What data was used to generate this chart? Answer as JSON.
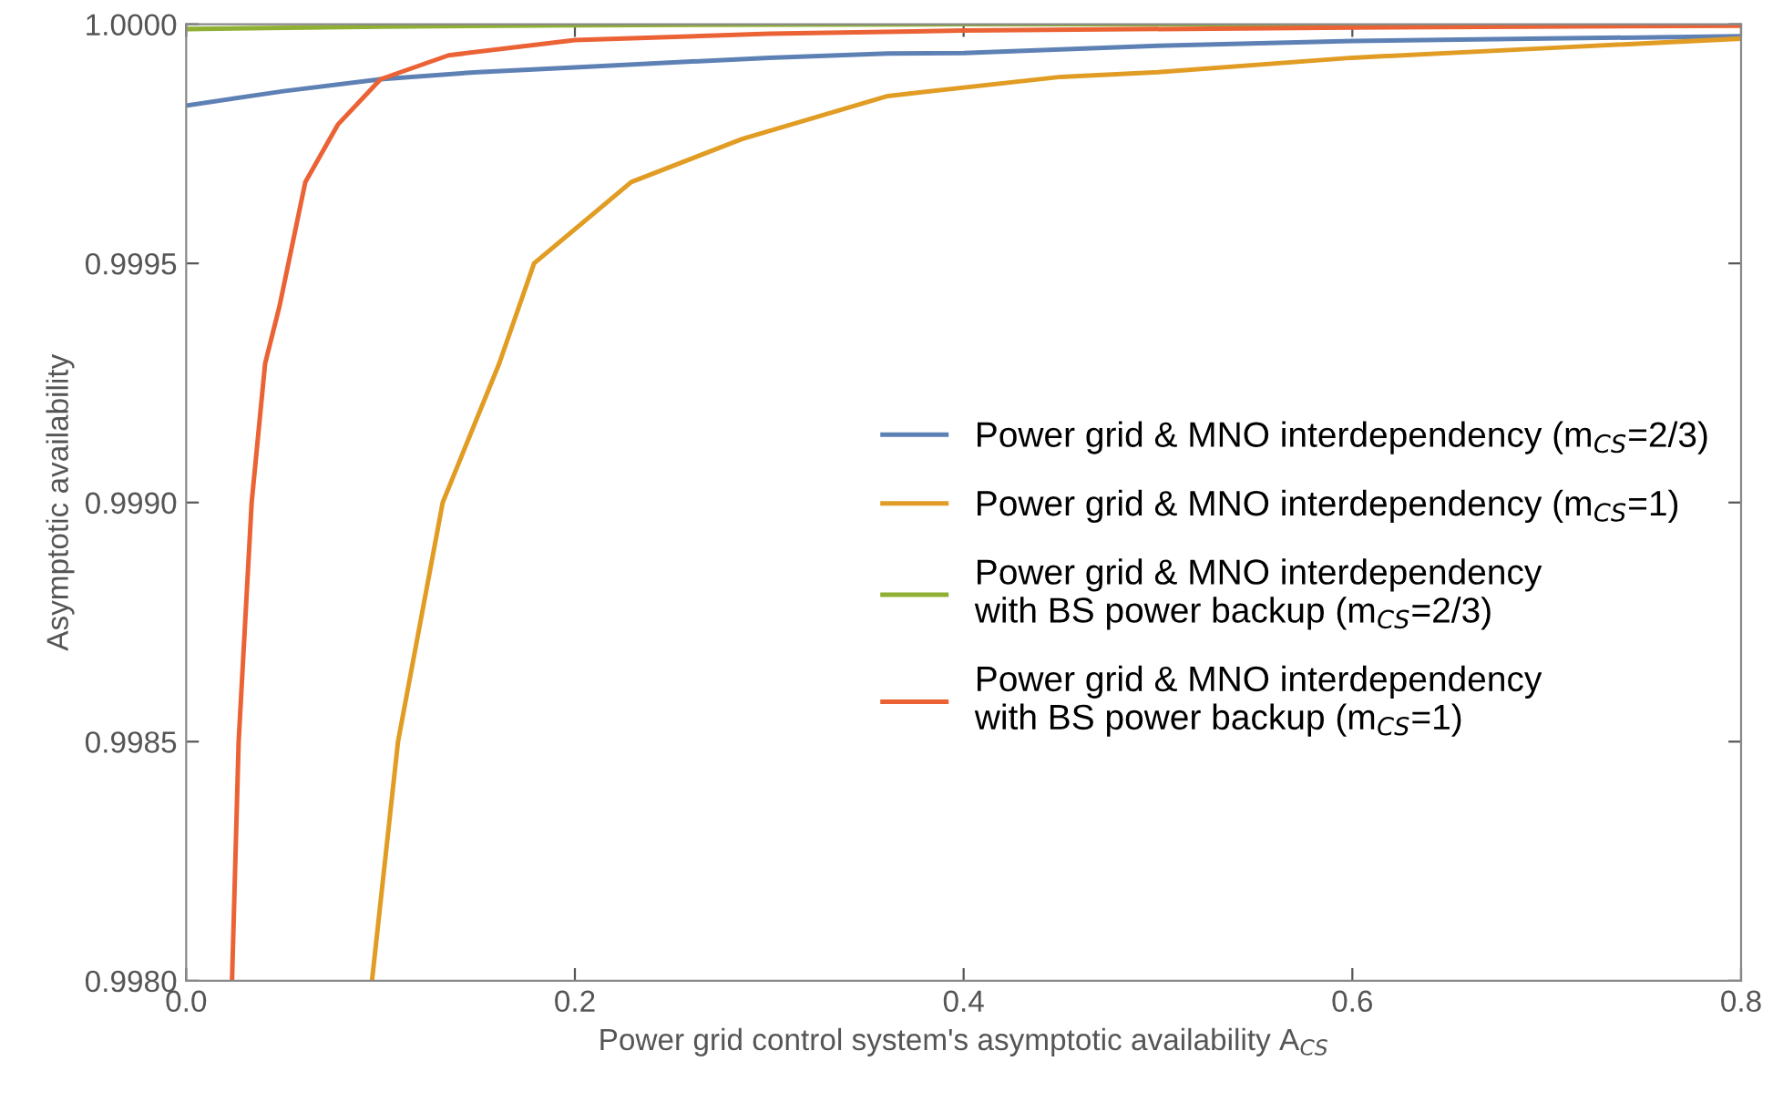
{
  "chart_data": {
    "type": "line",
    "xlabel": "Power grid control system's asymptotic availability A$_{CS}$",
    "ylabel": "Asymptotic availability",
    "xlim": [
      0,
      0.8
    ],
    "ylim": [
      0.998,
      1.0
    ],
    "xticks": [
      {
        "value": 0,
        "label": "0.0"
      },
      0.2,
      0.4,
      0.6,
      0.8
    ],
    "yticks": [
      {
        "value": 0.998,
        "label": "0.9980"
      },
      0.9985,
      {
        "value": 0.999,
        "label": "0.9990"
      },
      0.9995,
      {
        "value": 1.0,
        "label": "1.0000"
      }
    ],
    "grid": false,
    "legend": "right",
    "marker": "none",
    "line_style": "solid",
    "series": [
      {
        "name": "Power grid & MNO interdependency (m$_{CS}$=2/3)",
        "color": "#5e81b5",
        "x": [
          0,
          0.05,
          0.1,
          0.15,
          0.2,
          0.3,
          0.361,
          0.4,
          0.5,
          0.6,
          0.7,
          0.8
        ],
        "values": [
          0.99983,
          0.99986,
          0.999885,
          0.9999,
          0.99991,
          0.99993,
          0.999939,
          0.99994,
          0.999955,
          0.999965,
          0.99997,
          0.999975
        ]
      },
      {
        "name": "Power grid & MNO interdependency (m$_{CS}$=1)",
        "color": "#e19c24",
        "x": [
          0.0956,
          0.109,
          0.132,
          0.161,
          0.179,
          0.229,
          0.286,
          0.361,
          0.45,
          0.5,
          0.6,
          0.7,
          0.8
        ],
        "values": [
          0.998,
          0.9985,
          0.999,
          0.99929,
          0.9995,
          0.99967,
          0.99976,
          0.99985,
          0.99989,
          0.9999,
          0.99993,
          0.99995,
          0.99997
        ]
      },
      {
        "name": "Power grid & MNO interdependency\nwith BS power backup (m$_{CS}$=2/3)",
        "color": "#8fb032",
        "x": [
          0,
          0.1,
          0.2,
          0.4,
          0.8
        ],
        "values": [
          0.99999,
          0.999995,
          0.999998,
          1.0,
          1.0
        ]
      },
      {
        "name": "Power grid & MNO interdependency\nwith BS power backup (m$_{CS}$=1)",
        "color": "#eb6235",
        "x": [
          0.0236,
          0.027,
          0.0337,
          0.0406,
          0.048,
          0.0613,
          0.078,
          0.1,
          0.135,
          0.2,
          0.3,
          0.4,
          0.6,
          0.8
        ],
        "values": [
          0.998,
          0.9985,
          0.999,
          0.99929,
          0.99941,
          0.99967,
          0.99979,
          0.999885,
          0.999935,
          0.999967,
          0.99998,
          0.999987,
          0.999993,
          0.999997
        ]
      }
    ]
  }
}
